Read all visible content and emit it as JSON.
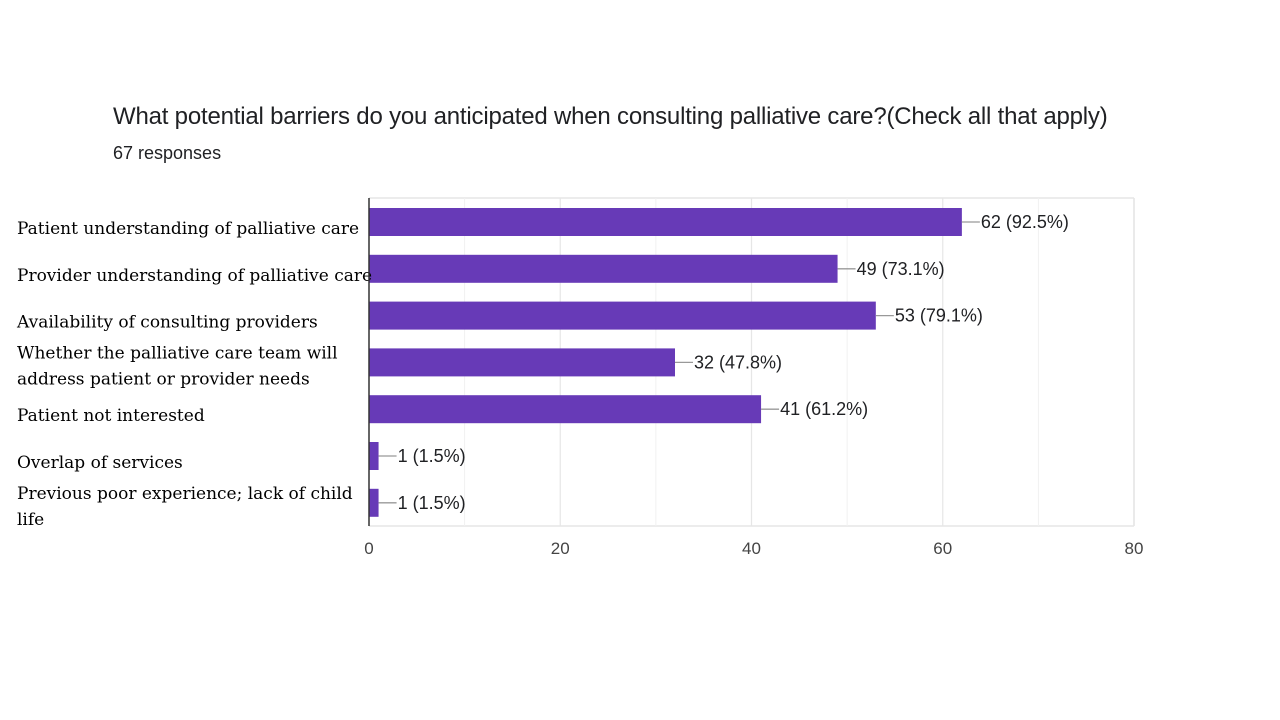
{
  "header": {
    "title": "What potential barriers do you anticipated when consulting palliative care?(Check all that apply)",
    "subtitle": "67 responses"
  },
  "colors": {
    "bar": "#673ab7",
    "grid": "#e6e6e6",
    "axis": "#333333",
    "leader": "#999999"
  },
  "chart_data": {
    "type": "bar",
    "orientation": "horizontal",
    "title": "What potential barriers do you anticipated when consulting palliative care?(Check all that apply)",
    "subtitle": "67 responses",
    "categories": [
      [
        "Patient understanding of palliative care"
      ],
      [
        "Provider understanding of palliative care"
      ],
      [
        "Availability of consulting providers"
      ],
      [
        "Whether the palliative care team will",
        "address patient or provider needs"
      ],
      [
        "Patient not interested"
      ],
      [
        "Overlap of services"
      ],
      [
        "Previous poor experience; lack of child",
        "life"
      ]
    ],
    "values": [
      62,
      49,
      53,
      32,
      41,
      1,
      1
    ],
    "data_labels": [
      "62 (92.5%)",
      "49 (73.1%)",
      "53 (79.1%)",
      "32 (47.8%)",
      "41 (61.2%)",
      "1 (1.5%)",
      "1 (1.5%)"
    ],
    "xlim": [
      0,
      80
    ],
    "xticks": [
      0,
      20,
      40,
      60,
      80
    ],
    "grid": true,
    "legend": "none"
  }
}
